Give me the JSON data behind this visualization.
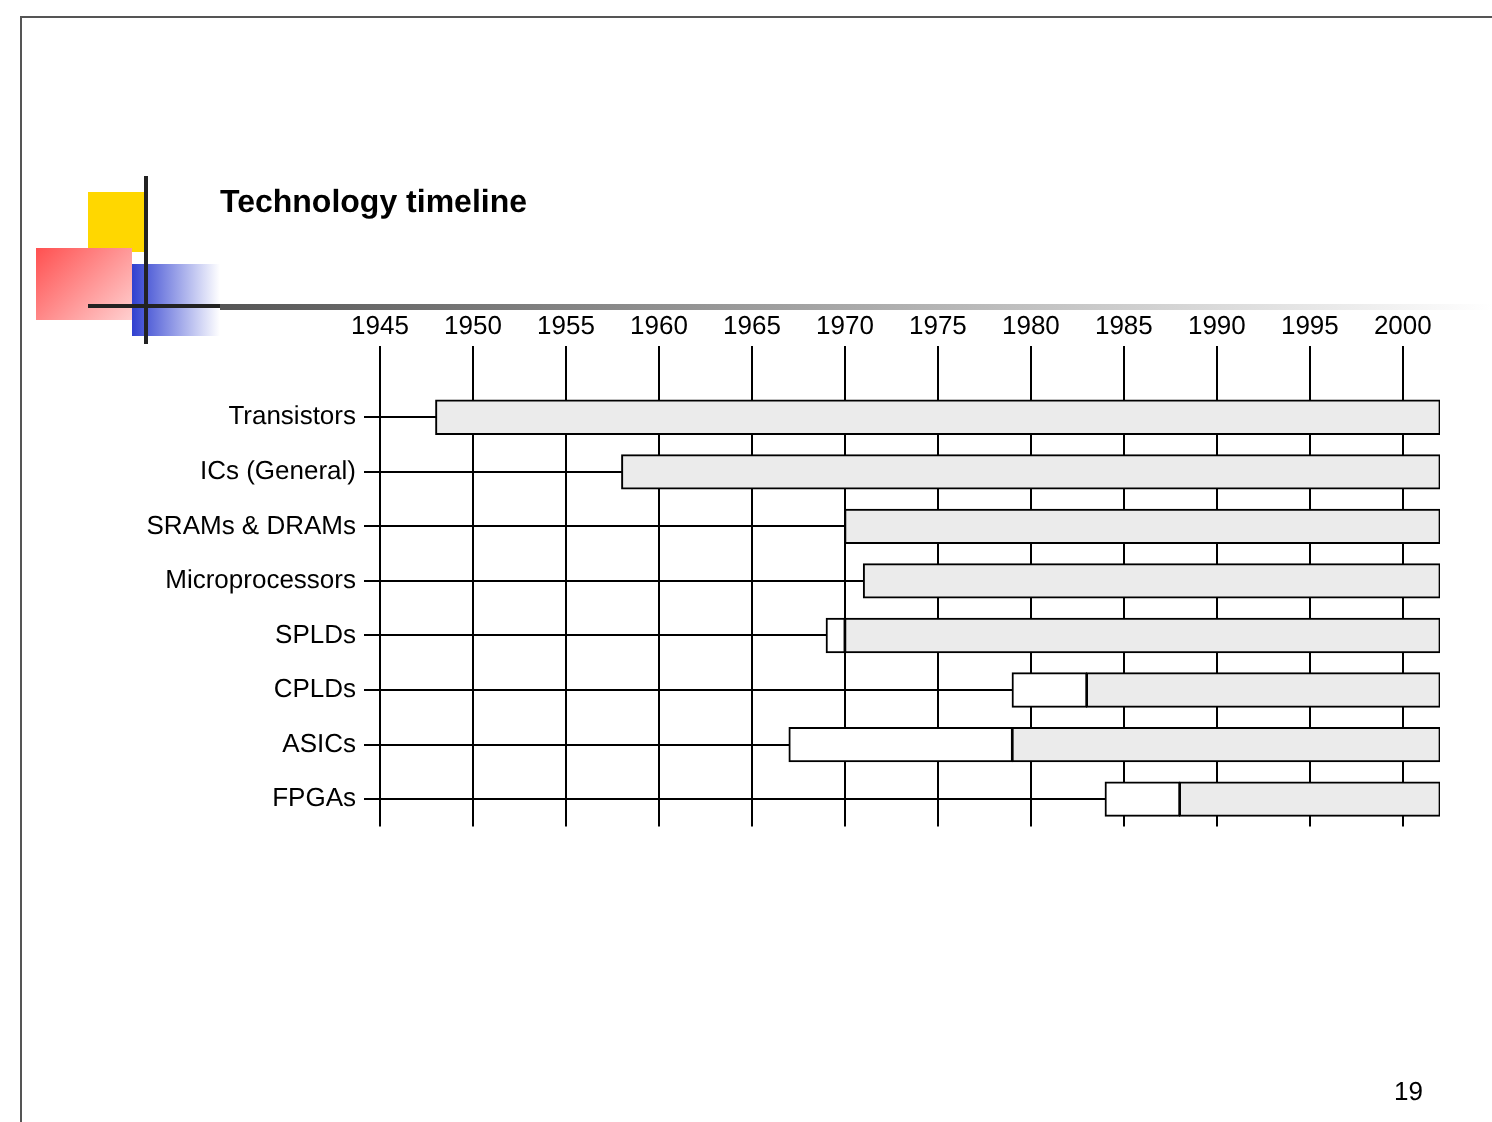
{
  "chart_data": {
    "type": "bar",
    "orientation": "horizontal",
    "title": "Technology timeline",
    "categories": [
      "Transistors",
      "ICs (General)",
      "SRAMs & DRAMs",
      "Microprocessors",
      "SPLDs",
      "CPLDs",
      "ASICs",
      "FPGAs"
    ],
    "series": [
      {
        "color": "#ffffff",
        "base": [
          null,
          null,
          null,
          null,
          1969,
          1979,
          1967,
          1984
        ],
        "values": [
          null,
          null,
          null,
          null,
          1,
          4,
          12,
          4
        ]
      },
      {
        "color": "#ebebeb",
        "base": [
          1948,
          1958,
          1970,
          1971,
          1970,
          1983,
          1979,
          1988
        ],
        "values": [
          54,
          44,
          32,
          31,
          32,
          19,
          23,
          14
        ]
      }
    ],
    "xlim": [
      1945,
      2002
    ],
    "xticks": [
      1945,
      1950,
      1955,
      1960,
      1965,
      1970,
      1975,
      1980,
      1985,
      1990,
      1995,
      2000
    ],
    "grid": true,
    "legend": false,
    "annotations": [
      "19"
    ]
  }
}
